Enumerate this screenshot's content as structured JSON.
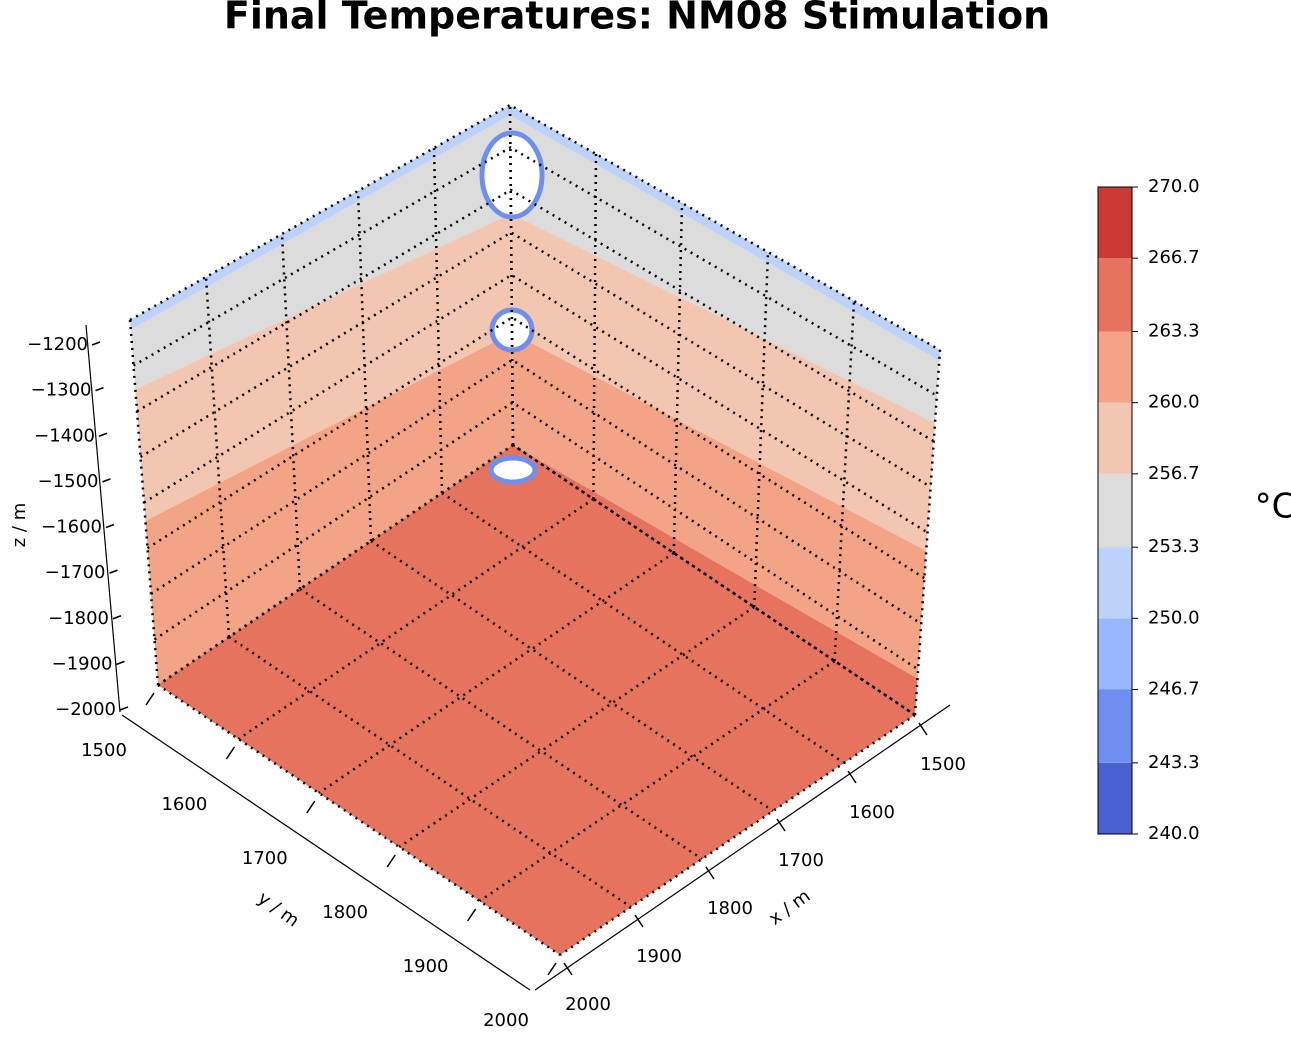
{
  "chart_data": {
    "type": "surface3d",
    "title": "Final Temperatures: NM08 Stimulation",
    "xlabel": "x / m",
    "ylabel": "y / m",
    "zlabel": "z / m",
    "xlim": [
      1500,
      2000
    ],
    "ylim": [
      1500,
      2000
    ],
    "zlim": [
      -2000,
      -1200
    ],
    "xticks": [
      1500,
      1600,
      1700,
      1800,
      1900,
      2000
    ],
    "yticks": [
      1500,
      1600,
      1700,
      1800,
      1900,
      2000
    ],
    "zticks": [
      {
        "value": -2000,
        "label": "−2000"
      },
      {
        "value": -1900,
        "label": "−1900"
      },
      {
        "value": -1800,
        "label": "−1800"
      },
      {
        "value": -1700,
        "label": "−1700"
      },
      {
        "value": -1600,
        "label": "−1600"
      },
      {
        "value": -1500,
        "label": "−1500"
      },
      {
        "value": -1400,
        "label": "−1400"
      },
      {
        "value": -1300,
        "label": "−1300"
      },
      {
        "value": -1200,
        "label": "−1200"
      }
    ],
    "colorbar": {
      "label": "°C",
      "levels": [
        {
          "value": 240,
          "label": "240.0"
        },
        243.3,
        246.7,
        {
          "value": 250,
          "label": "250.0"
        },
        253.3,
        256.7,
        {
          "value": 260,
          "label": "260.0"
        },
        263.3,
        266.7,
        {
          "value": 270,
          "label": "270.0"
        }
      ],
      "colors": [
        "#4a61d1",
        "#6f8ff0",
        "#98b7fc",
        "#bdd2fb",
        "#dcdcdc",
        "#f2c6b1",
        "#f4a486",
        "#e6735d",
        "#cb3a35"
      ]
    }
  }
}
